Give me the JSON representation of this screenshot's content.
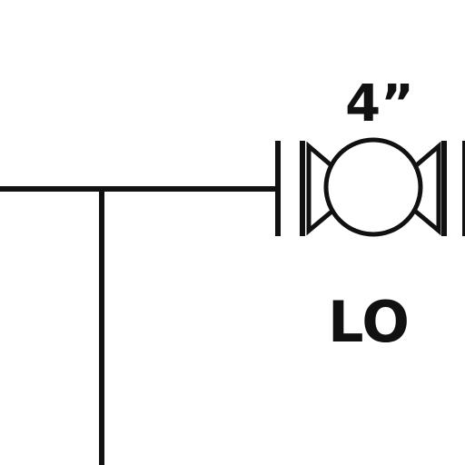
{
  "valve": {
    "size_label": "4”",
    "tag_label": "LO",
    "icon": "ball-valve-icon"
  },
  "next_tag_partial": "(",
  "colors": {
    "line": "#111111",
    "background": "#ffffff"
  }
}
